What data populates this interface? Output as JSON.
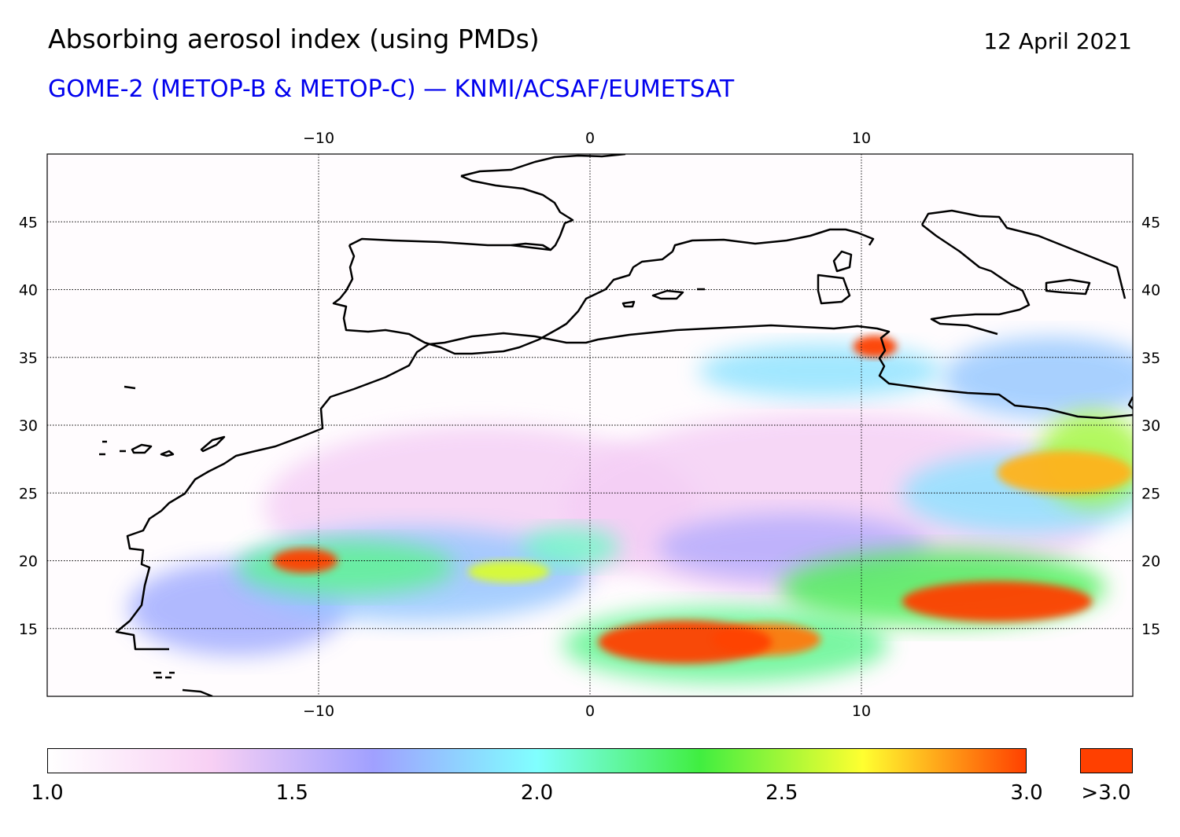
{
  "header": {
    "title": "Absorbing aerosol index (using PMDs)",
    "date": "12 April 2021",
    "subtitle": "GOME-2 (METOP-B & METOP-C) — KNMI/ACSAF/EUMETSAT"
  },
  "map": {
    "projection": "equirectangular",
    "lon_range": [
      -20,
      20
    ],
    "lat_range": [
      10,
      50
    ],
    "lon_ticks": [
      {
        "value": -10,
        "label": "−10"
      },
      {
        "value": 0,
        "label": "0"
      },
      {
        "value": 10,
        "label": "10"
      }
    ],
    "lat_ticks": [
      {
        "value": 45,
        "label": "45"
      },
      {
        "value": 40,
        "label": "40"
      },
      {
        "value": 35,
        "label": "35"
      },
      {
        "value": 30,
        "label": "30"
      },
      {
        "value": 25,
        "label": "25"
      },
      {
        "value": 20,
        "label": "20"
      },
      {
        "value": 15,
        "label": "15"
      }
    ],
    "gridlines": "dotted",
    "coastline_color": "#000000",
    "aerosol_plumes": [
      {
        "lon": 3.5,
        "lat": 14.0,
        "rlon": 3.2,
        "rlat": 1.6,
        "aai": 3.1
      },
      {
        "lon": 6.5,
        "lat": 14.2,
        "rlon": 2.0,
        "rlat": 1.2,
        "aai": 2.9
      },
      {
        "lon": 5.0,
        "lat": 13.8,
        "rlon": 6.0,
        "rlat": 2.8,
        "aai": 2.2
      },
      {
        "lon": 15.0,
        "lat": 17.0,
        "rlon": 3.5,
        "rlat": 1.5,
        "aai": 3.0
      },
      {
        "lon": 13.0,
        "lat": 18.0,
        "rlon": 6.0,
        "rlat": 2.8,
        "aai": 2.3
      },
      {
        "lon": 17.5,
        "lat": 26.5,
        "rlon": 2.5,
        "rlat": 1.6,
        "aai": 2.8
      },
      {
        "lon": 18.5,
        "lat": 27.5,
        "rlon": 2.0,
        "rlat": 3.5,
        "aai": 2.5
      },
      {
        "lon": 16.0,
        "lat": 25.0,
        "rlon": 4.5,
        "rlat": 3.0,
        "aai": 1.9
      },
      {
        "lon": 10.5,
        "lat": 35.8,
        "rlon": 0.8,
        "rlat": 0.8,
        "aai": 3.0
      },
      {
        "lon": 8.5,
        "lat": 34.0,
        "rlon": 4.5,
        "rlat": 2.0,
        "aai": 1.9
      },
      {
        "lon": 17.0,
        "lat": 33.5,
        "rlon": 4.0,
        "rlat": 3.0,
        "aai": 1.8
      },
      {
        "lon": -10.5,
        "lat": 20.0,
        "rlon": 1.2,
        "rlat": 0.9,
        "aai": 3.0
      },
      {
        "lon": -9.0,
        "lat": 19.5,
        "rlon": 4.0,
        "rlat": 2.0,
        "aai": 2.2
      },
      {
        "lon": -6.5,
        "lat": 19.0,
        "rlon": 6.5,
        "rlat": 3.5,
        "aai": 1.8
      },
      {
        "lon": -3.0,
        "lat": 19.2,
        "rlon": 1.5,
        "rlat": 0.8,
        "aai": 2.6
      },
      {
        "lon": -0.7,
        "lat": 21.0,
        "rlon": 1.8,
        "rlat": 1.5,
        "aai": 2.1
      },
      {
        "lon": -13.0,
        "lat": 16.5,
        "rlon": 4.0,
        "rlat": 3.5,
        "aai": 1.7
      },
      {
        "lon": 7.5,
        "lat": 21.0,
        "rlon": 5.0,
        "rlat": 2.5,
        "aai": 1.6
      },
      {
        "lon": -4.0,
        "lat": 24.0,
        "rlon": 8.0,
        "rlat": 6.0,
        "aai": 1.35
      },
      {
        "lon": 9.0,
        "lat": 24.0,
        "rlon": 10.0,
        "rlat": 7.0,
        "aai": 1.35
      }
    ]
  },
  "colorbar": {
    "min": 1.0,
    "max": 3.0,
    "labels": [
      "1.0",
      "1.5",
      "2.0",
      "2.5",
      "3.0"
    ],
    "over_label": ">3.0",
    "stops": [
      "#ffffff",
      "#f8d0f4",
      "#a0a0ff",
      "#80ffff",
      "#40ee40",
      "#ffff30",
      "#ff4000"
    ],
    "over_color": "#ff4000"
  }
}
